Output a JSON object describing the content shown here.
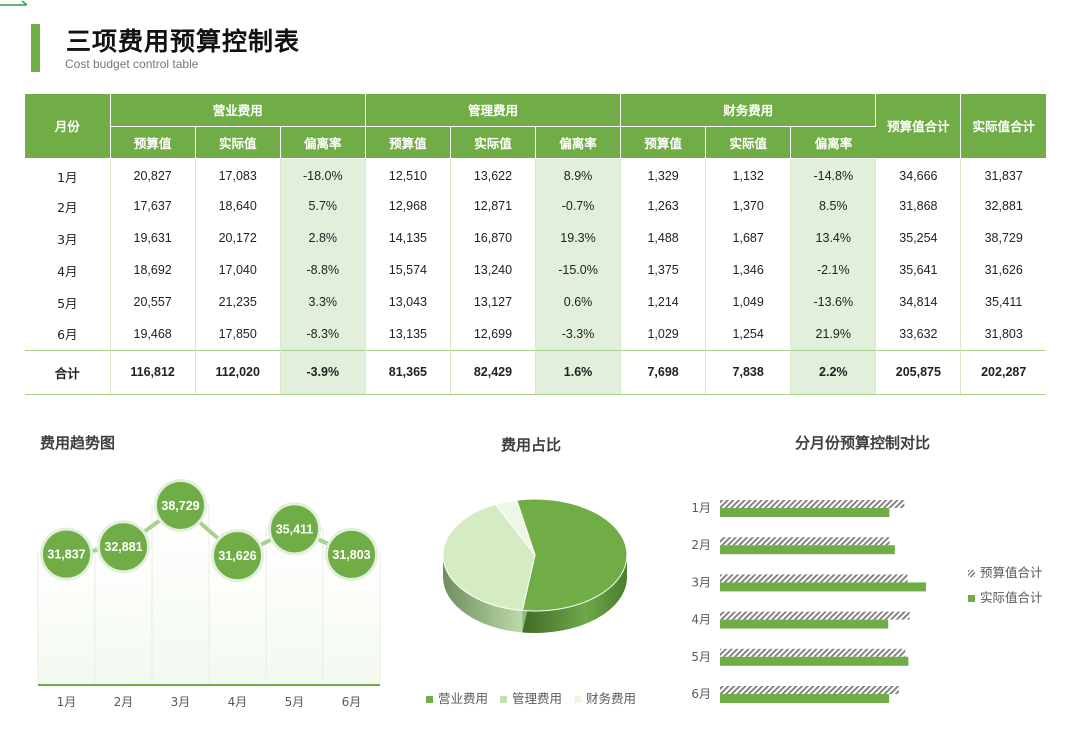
{
  "header": {
    "title": "三项费用预算控制表",
    "subtitle": "Cost budget control table"
  },
  "table": {
    "month_header": "月份",
    "groups": [
      "营业费用",
      "管理费用",
      "财务费用"
    ],
    "sub_headers": [
      "预算值",
      "实际值",
      "偏离率"
    ],
    "budget_total_header": "预算值合计",
    "actual_total_header": "实际值合计",
    "rows": [
      {
        "month": "1月",
        "c": [
          "20,827",
          "17,083",
          "-18.0%",
          "12,510",
          "13,622",
          "8.9%",
          "1,329",
          "1,132",
          "-14.8%",
          "34,666",
          "31,837"
        ]
      },
      {
        "month": "2月",
        "c": [
          "17,637",
          "18,640",
          "5.7%",
          "12,968",
          "12,871",
          "-0.7%",
          "1,263",
          "1,370",
          "8.5%",
          "31,868",
          "32,881"
        ]
      },
      {
        "month": "3月",
        "c": [
          "19,631",
          "20,172",
          "2.8%",
          "14,135",
          "16,870",
          "19.3%",
          "1,488",
          "1,687",
          "13.4%",
          "35,254",
          "38,729"
        ]
      },
      {
        "month": "4月",
        "c": [
          "18,692",
          "17,040",
          "-8.8%",
          "15,574",
          "13,240",
          "-15.0%",
          "1,375",
          "1,346",
          "-2.1%",
          "35,641",
          "31,626"
        ]
      },
      {
        "month": "5月",
        "c": [
          "20,557",
          "21,235",
          "3.3%",
          "13,043",
          "13,127",
          "0.6%",
          "1,214",
          "1,049",
          "-13.6%",
          "34,814",
          "35,411"
        ]
      },
      {
        "month": "6月",
        "c": [
          "19,468",
          "17,850",
          "-8.3%",
          "13,135",
          "12,699",
          "-3.3%",
          "1,029",
          "1,254",
          "21.9%",
          "33,632",
          "31,803"
        ]
      }
    ],
    "total": {
      "label": "合计",
      "c": [
        "116,812",
        "112,020",
        "-3.9%",
        "81,365",
        "82,429",
        "1.6%",
        "7,698",
        "7,838",
        "2.2%",
        "205,875",
        "202,287"
      ]
    }
  },
  "trend_chart": {
    "title": "费用趋势图",
    "months": [
      "1月",
      "2月",
      "3月",
      "4月",
      "5月",
      "6月"
    ],
    "values": [
      31837,
      32881,
      38729,
      31626,
      35411,
      31803
    ],
    "labels": [
      "31,837",
      "32,881",
      "38,729",
      "31,626",
      "35,411",
      "31,803"
    ],
    "color": "#70ad47"
  },
  "pie_chart": {
    "title": "费用占比",
    "legend": [
      "营业费用",
      "管理费用",
      "财务费用"
    ],
    "values": [
      112020,
      82429,
      7838
    ],
    "colors": [
      "#70ad47",
      "#d4ebc4",
      "#edf7e6"
    ]
  },
  "bar_chart": {
    "title": "分月份预算控制对比",
    "months": [
      "1月",
      "2月",
      "3月",
      "4月",
      "5月",
      "6月"
    ],
    "legend_budget": "预算值合计",
    "legend_actual": "实际值合计",
    "budget": [
      34666,
      31868,
      35254,
      35641,
      34814,
      33632
    ],
    "actual": [
      31837,
      32881,
      38729,
      31626,
      35411,
      31803
    ],
    "actual_color": "#70ad47"
  },
  "colors": {
    "accent": "#70ad47",
    "header_bg": "#70ad47",
    "deviation_bg": "#e2efda"
  }
}
